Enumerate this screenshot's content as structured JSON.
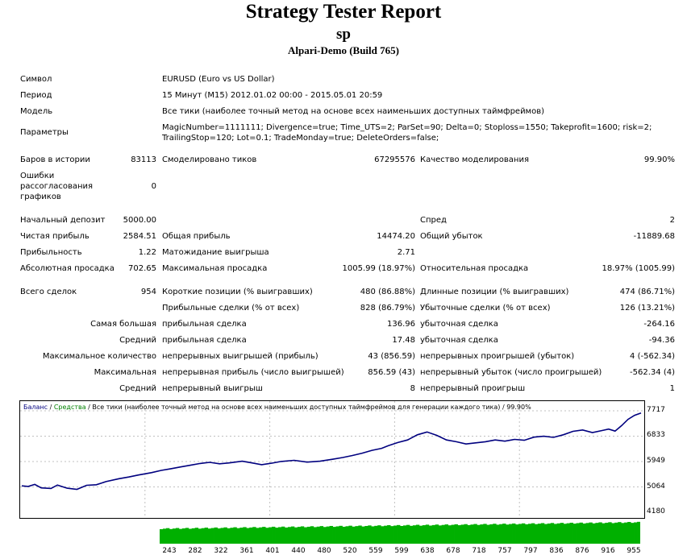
{
  "header": {
    "title": "Strategy Tester Report",
    "subtitle": "sp",
    "broker": "Alpari-Demo (Build 765)"
  },
  "info": {
    "symbol_label": "Символ",
    "symbol_value": "EURUSD (Euro vs US Dollar)",
    "period_label": "Период",
    "period_value": "15 Минут (M15) 2012.01.02 00:00 - 2015.05.01 20:59",
    "model_label": "Модель",
    "model_value": "Все тики (наиболее точный метод на основе всех наименьших доступных таймфреймов)",
    "params_label": "Параметры",
    "params_line1": "MagicNumber=1111111; Divergence=true; Time_UTS=2; ParSet=90; Delta=0; Stoploss=1550; Takeprofit=1600; risk=2;",
    "params_line2": "TrailingStop=120; Lot=0.1; TradeMonday=true; DeleteOrders=false;"
  },
  "modeling": {
    "bars_label": "Баров в истории",
    "bars_value": "83113",
    "ticks_label": "Смоделировано тиков",
    "ticks_value": "67295576",
    "quality_label": "Качество моделирования",
    "quality_value": "99.90%",
    "errors_label_1": "Ошибки",
    "errors_label_2": "рассогласования",
    "errors_label_3": "графиков",
    "errors_value": "0"
  },
  "results": {
    "deposit_label": "Начальный депозит",
    "deposit_value": "5000.00",
    "spread_label": "Спред",
    "spread_value": "2",
    "net_profit_label": "Чистая прибыль",
    "net_profit_value": "2584.51",
    "gross_profit_label": "Общая прибыль",
    "gross_profit_value": "14474.20",
    "gross_loss_label": "Общий убыток",
    "gross_loss_value": "-11889.68",
    "profit_factor_label": "Прибыльность",
    "profit_factor_value": "1.22",
    "expected_payoff_label": "Матожидание выигрыша",
    "expected_payoff_value": "2.71",
    "abs_dd_label": "Абсолютная просадка",
    "abs_dd_value": "702.65",
    "max_dd_label": "Максимальная просадка",
    "max_dd_value": "1005.99 (18.97%)",
    "rel_dd_label": "Относительная просадка",
    "rel_dd_value": "18.97% (1005.99)"
  },
  "trades": {
    "total_label": "Всего сделок",
    "total_value": "954",
    "short_label": "Короткие позиции (% выигравших)",
    "short_value": "480 (86.88%)",
    "long_label": "Длинные позиции (% выигравших)",
    "long_value": "474 (86.71%)",
    "profit_trades_label": "Прибыльные сделки (% от всех)",
    "profit_trades_value": "828 (86.79%)",
    "loss_trades_label": "Убыточные сделки (% от всех)",
    "loss_trades_value": "126 (13.21%)",
    "largest_label": "Самая большая",
    "largest_profit_label": "прибыльная сделка",
    "largest_profit_value": "136.96",
    "largest_loss_label": "убыточная сделка",
    "largest_loss_value": "-264.16",
    "average_label": "Средний",
    "average_profit_label": "прибыльная сделка",
    "average_profit_value": "17.48",
    "average_loss_label": "убыточная сделка",
    "average_loss_value": "-94.36",
    "max_count_label": "Максимальное количество",
    "max_consec_wins_label": "непрерывных выигрышей (прибыль)",
    "max_consec_wins_value": "43 (856.59)",
    "max_consec_losses_label": "непрерывных проигрышей (убыток)",
    "max_consec_losses_value": "4 (-562.34)",
    "maximal_label": "Максимальная",
    "max_consec_profit_label": "непрерывная прибыль (число выигрышей)",
    "max_consec_profit_value": "856.59 (43)",
    "max_consec_loss_label": "непрерывный убыток (число проигрышей)",
    "max_consec_loss_value": "-562.34 (4)",
    "avg_label": "Средний",
    "avg_consec_wins_label": "непрерывный выигрыш",
    "avg_consec_wins_value": "8",
    "avg_consec_losses_label": "непрерывный проигрыш",
    "avg_consec_losses_value": "1"
  },
  "chart_legend": {
    "balance": "Баланс",
    "sep1": " / ",
    "equity": "Средства",
    "sep2": " / ",
    "rest": "Все тики (наиболее точный метод на основе всех наименьших доступных таймфреймов для генерации каждого тика) / 99.90%"
  },
  "chart_data": {
    "type": "line",
    "x_tick_labels": [
      "243",
      "282",
      "322",
      "361",
      "401",
      "440",
      "480",
      "520",
      "559",
      "599",
      "638",
      "678",
      "718",
      "757",
      "797",
      "836",
      "876",
      "916",
      "955"
    ],
    "y_tick_labels": [
      "7717",
      "6833",
      "5949",
      "5064",
      "4180"
    ],
    "ylim": [
      4180,
      7717
    ],
    "xlim": [
      0,
      955
    ],
    "series": [
      {
        "name": "Баланс",
        "color": "#00007f",
        "x": [
          0,
          10,
          20,
          30,
          45,
          55,
          70,
          85,
          100,
          115,
          130,
          150,
          165,
          180,
          200,
          215,
          230,
          245,
          260,
          275,
          290,
          305,
          320,
          340,
          355,
          370,
          385,
          400,
          420,
          440,
          460,
          480,
          495,
          510,
          525,
          540,
          555,
          565,
          580,
          595,
          610,
          625,
          640,
          655,
          670,
          685,
          700,
          715,
          730,
          745,
          760,
          775,
          790,
          805,
          820,
          835,
          850,
          865,
          880,
          895,
          905,
          915,
          925,
          935,
          945,
          955
        ],
        "y": [
          5100,
          5080,
          5150,
          5030,
          5010,
          5130,
          5020,
          4980,
          5120,
          5140,
          5250,
          5350,
          5410,
          5480,
          5560,
          5640,
          5700,
          5760,
          5820,
          5880,
          5920,
          5870,
          5900,
          5960,
          5900,
          5840,
          5890,
          5950,
          5990,
          5930,
          5960,
          6030,
          6090,
          6160,
          6240,
          6340,
          6410,
          6500,
          6610,
          6700,
          6880,
          6980,
          6860,
          6700,
          6640,
          6560,
          6600,
          6640,
          6700,
          6660,
          6720,
          6690,
          6800,
          6830,
          6790,
          6880,
          7000,
          7050,
          6960,
          7030,
          7080,
          7010,
          7200,
          7420,
          7560,
          7640
        ]
      },
      {
        "name": "Средства",
        "color": "#008000",
        "x": [],
        "y": []
      }
    ],
    "volume_bars": "green",
    "grid": true
  }
}
